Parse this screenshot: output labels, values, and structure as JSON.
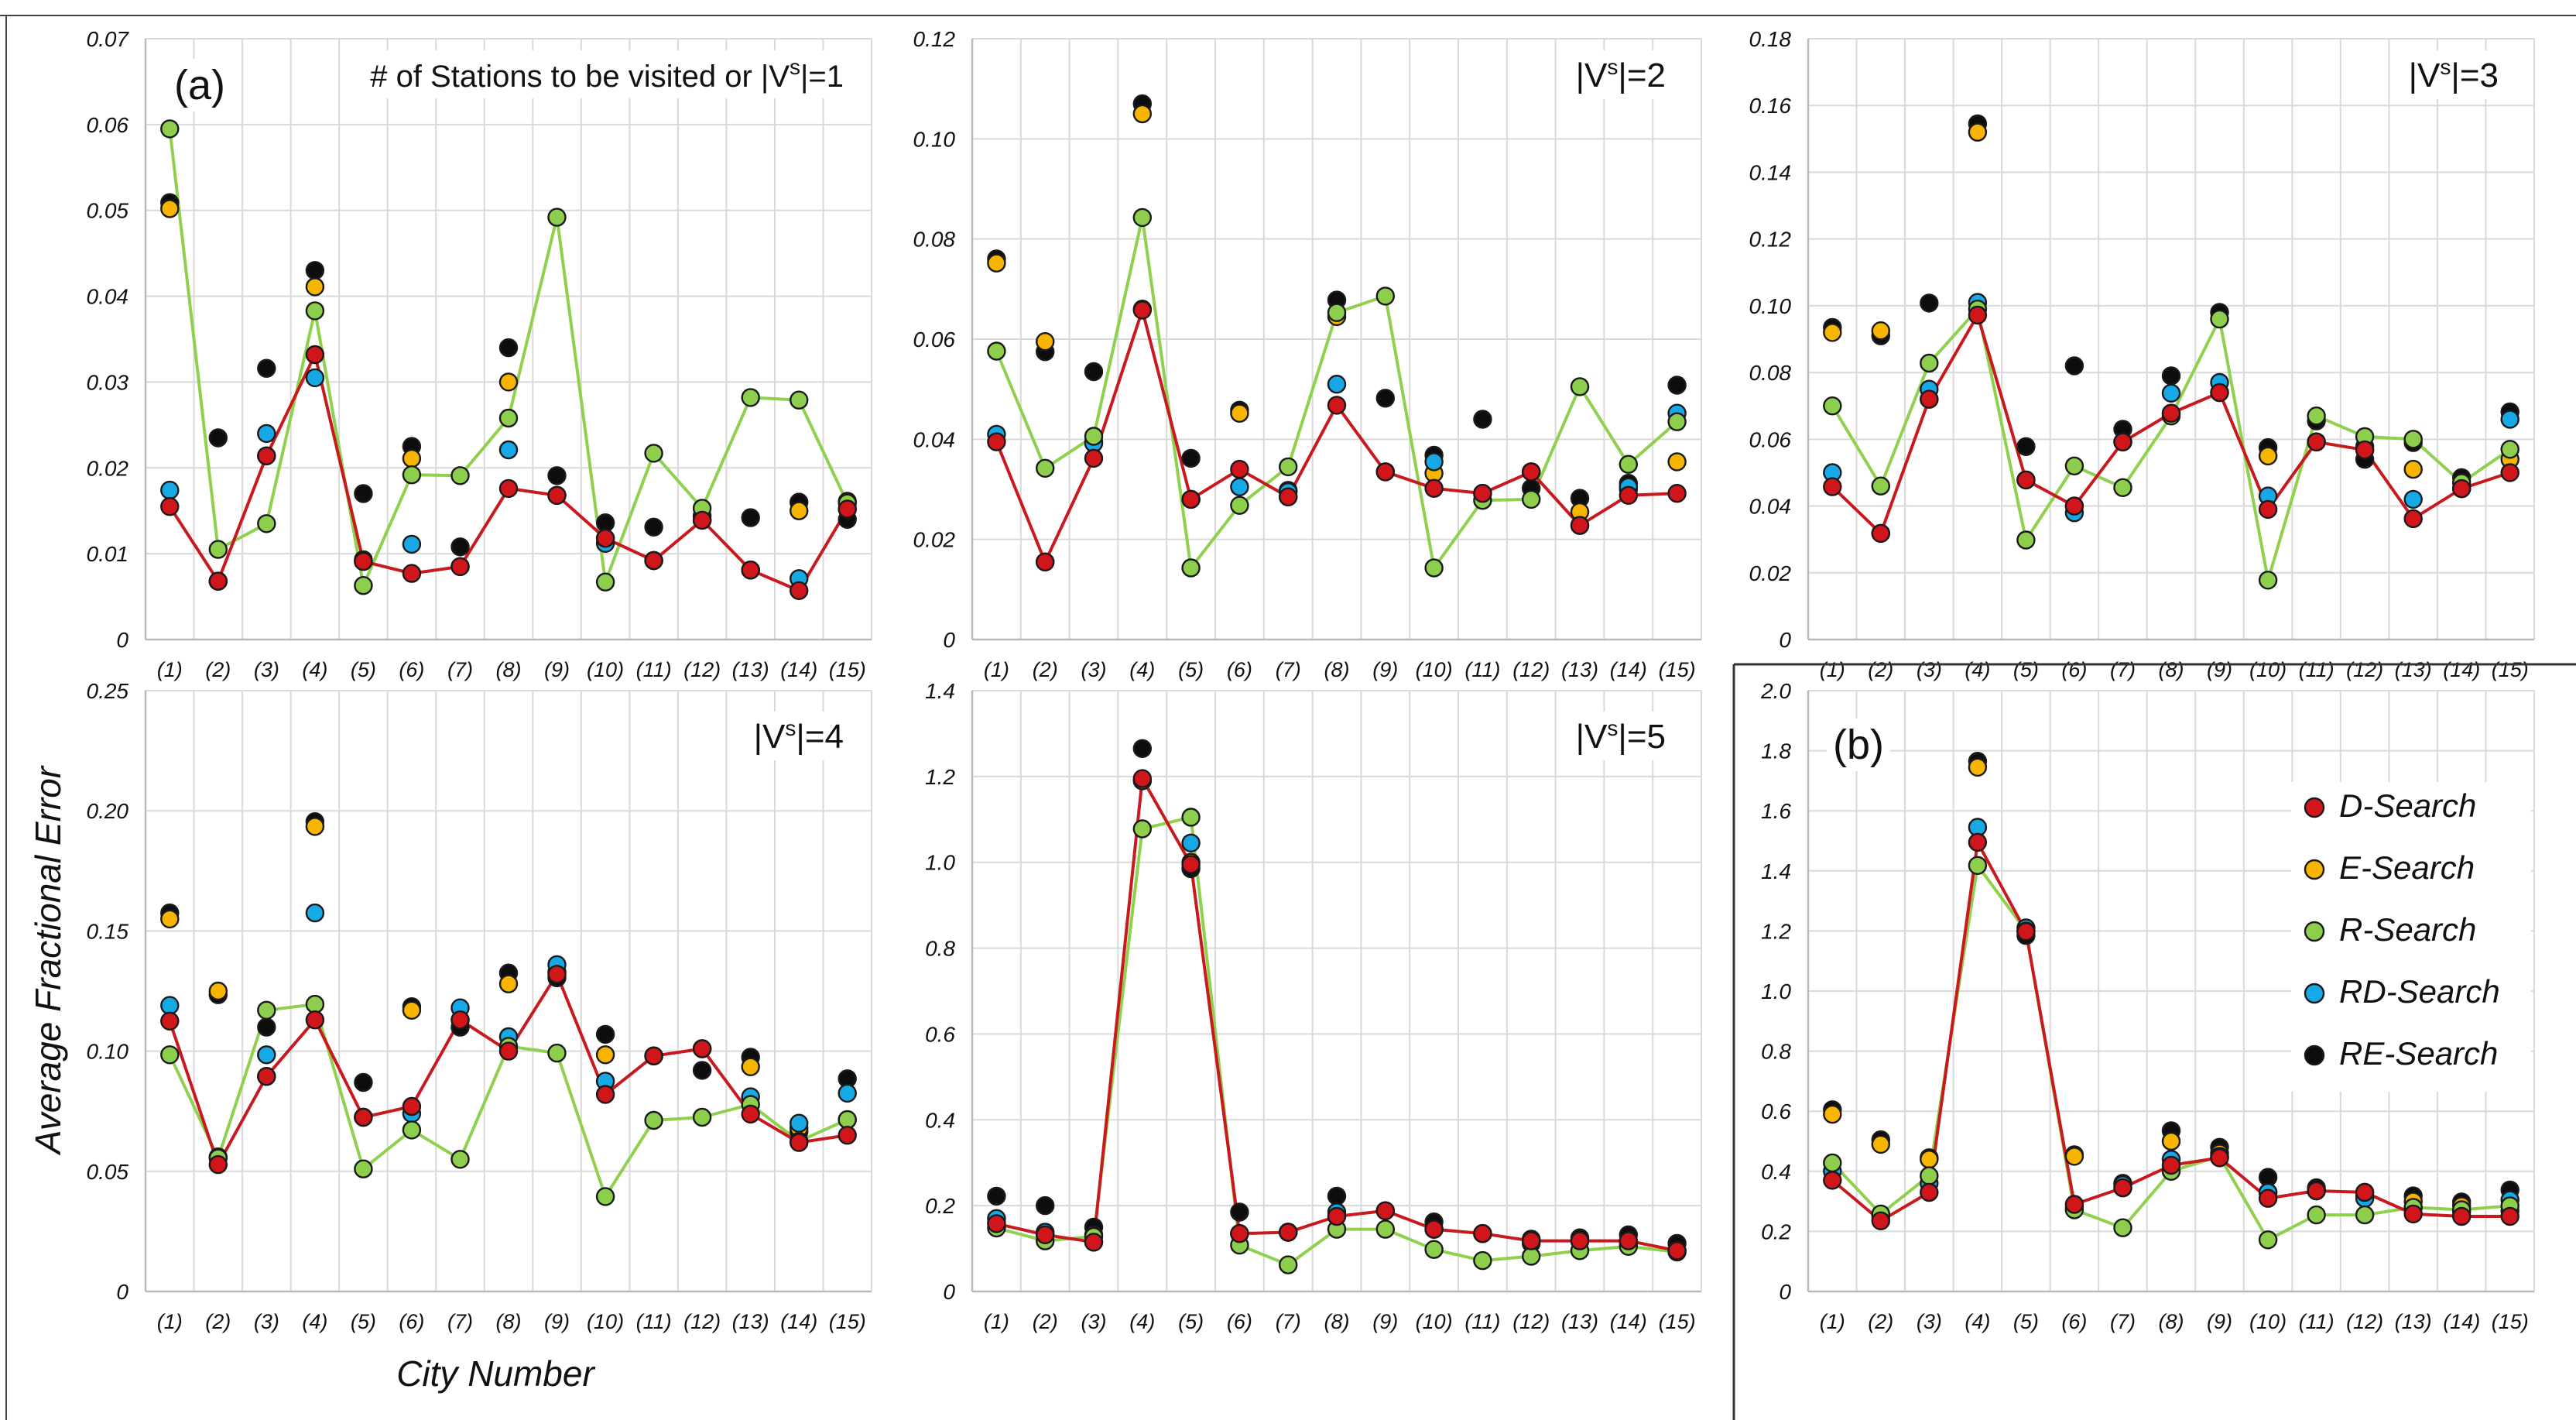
{
  "figure": {
    "ylabel": "Average Fractional Error",
    "xlabel": "City Number",
    "legend": [
      "D-Search",
      "E-Search",
      "R-Search",
      "RD-Search",
      "RE-Search"
    ]
  },
  "colors": {
    "D-Search": "#d0161b",
    "E-Search": "#f7b500",
    "R-Search": "#8dcf4c",
    "RD-Search": "#17a9e5",
    "RE-Search": "#0d0d0d",
    "line_D": "#c8191e",
    "line_R": "#8fd14f"
  },
  "chart_data": [
    {
      "type": "scatter",
      "panel_label": "(a)",
      "title": "# of Stations to be visited or |V",
      "title_sup": "s",
      "title_tail": "|=1",
      "categories": [
        "(1)",
        "(2)",
        "(3)",
        "(4)",
        "(5)",
        "(6)",
        "(7)",
        "(8)",
        "(9)",
        "(10)",
        "(11)",
        "(12)",
        "(13)",
        "(14)",
        "(15)"
      ],
      "ylim": [
        0,
        0.07
      ],
      "yticks": [
        "0",
        "0.01",
        "0.02",
        "0.03",
        "0.04",
        "0.05",
        "0.06",
        "0.07"
      ],
      "series": [
        {
          "name": "R-Search",
          "line": true,
          "values": [
            0.0595,
            0.0105,
            0.0135,
            0.0383,
            0.0063,
            0.0192,
            0.0191,
            0.0258,
            0.0492,
            0.0067,
            0.0217,
            0.0153,
            0.0282,
            0.0279,
            0.0159
          ]
        },
        {
          "name": "D-Search",
          "line": true,
          "values": [
            0.0155,
            0.0068,
            0.0214,
            0.0332,
            0.0091,
            0.0077,
            0.0085,
            0.0176,
            0.0168,
            0.0118,
            0.0092,
            0.0139,
            0.0081,
            0.0057,
            0.0152
          ]
        },
        {
          "name": "E-Search",
          "line": false,
          "values": [
            0.0502,
            0.0068,
            0.0214,
            0.0411,
            0.0091,
            0.0211,
            0.0085,
            0.03,
            0.0168,
            0.0118,
            0.0092,
            0.0139,
            0.0081,
            0.015,
            0.0152
          ]
        },
        {
          "name": "RD-Search",
          "line": false,
          "values": [
            0.0174,
            0.0068,
            0.024,
            0.0305,
            0.0093,
            0.0111,
            0.0085,
            0.0221,
            0.0168,
            0.0112,
            0.0092,
            0.0139,
            0.0081,
            0.0071,
            0.0161
          ]
        },
        {
          "name": "RE-Search",
          "line": false,
          "values": [
            0.0509,
            0.0235,
            0.0316,
            0.043,
            0.017,
            0.0225,
            0.0108,
            0.034,
            0.0191,
            0.0136,
            0.0131,
            0.0144,
            0.0142,
            0.016,
            0.014
          ]
        }
      ]
    },
    {
      "type": "scatter",
      "title": "|V",
      "title_sup": "s",
      "title_tail": "|=2",
      "categories": [
        "(1)",
        "(2)",
        "(3)",
        "(4)",
        "(5)",
        "(6)",
        "(7)",
        "(8)",
        "(9)",
        "(10)",
        "(11)",
        "(12)",
        "(13)",
        "(14)",
        "(15)"
      ],
      "ylim": [
        0,
        0.12
      ],
      "yticks": [
        "0",
        "0.02",
        "0.04",
        "0.06",
        "0.08",
        "0.10",
        "0.12"
      ],
      "series": [
        {
          "name": "R-Search",
          "line": true,
          "values": [
            0.0576,
            0.0342,
            0.0406,
            0.0843,
            0.0143,
            0.0268,
            0.0345,
            0.0653,
            0.0686,
            0.0143,
            0.0278,
            0.028,
            0.0505,
            0.035,
            0.0435
          ]
        },
        {
          "name": "D-Search",
          "line": true,
          "values": [
            0.0395,
            0.0155,
            0.0362,
            0.0658,
            0.028,
            0.034,
            0.0285,
            0.0468,
            0.0335,
            0.0302,
            0.0292,
            0.0335,
            0.0228,
            0.0288,
            0.0292
          ]
        },
        {
          "name": "E-Search",
          "line": false,
          "values": [
            0.0752,
            0.0595,
            0.0395,
            0.105,
            0.028,
            0.0452,
            0.0285,
            0.0645,
            0.0335,
            0.0332,
            0.0292,
            0.0335,
            0.0255,
            0.03,
            0.0355
          ]
        },
        {
          "name": "RD-Search",
          "line": false,
          "values": [
            0.041,
            0.0155,
            0.0392,
            0.066,
            0.028,
            0.0305,
            0.0295,
            0.051,
            0.0335,
            0.0355,
            0.0292,
            0.0335,
            0.0228,
            0.0305,
            0.0452
          ]
        },
        {
          "name": "RE-Search",
          "line": false,
          "values": [
            0.076,
            0.0575,
            0.0535,
            0.107,
            0.0362,
            0.0458,
            0.0298,
            0.0678,
            0.0482,
            0.0368,
            0.044,
            0.0302,
            0.0282,
            0.0312,
            0.0508
          ]
        }
      ]
    },
    {
      "type": "scatter",
      "title": "|V",
      "title_sup": "s",
      "title_tail": "|=3",
      "categories": [
        "(1)",
        "(2)",
        "(3)",
        "(4)",
        "(5)",
        "(6)",
        "(7)",
        "(8)",
        "(9)",
        "(10)",
        "(11)",
        "(12)",
        "(13)",
        "(14)",
        "(15)"
      ],
      "ylim": [
        0,
        0.18
      ],
      "yticks": [
        "0",
        "0.02",
        "0.04",
        "0.06",
        "0.08",
        "0.10",
        "0.12",
        "0.14",
        "0.16",
        "0.18"
      ],
      "series": [
        {
          "name": "R-Search",
          "line": true,
          "values": [
            0.07,
            0.046,
            0.0828,
            0.099,
            0.0298,
            0.052,
            0.0455,
            0.067,
            0.096,
            0.0178,
            0.067,
            0.0608,
            0.06,
            0.047,
            0.057
          ]
        },
        {
          "name": "D-Search",
          "line": true,
          "values": [
            0.0458,
            0.0318,
            0.072,
            0.0972,
            0.0478,
            0.04,
            0.0592,
            0.0678,
            0.074,
            0.039,
            0.0592,
            0.0568,
            0.0362,
            0.0452,
            0.05
          ]
        },
        {
          "name": "E-Search",
          "line": false,
          "values": [
            0.092,
            0.0925,
            0.072,
            0.152,
            0.0478,
            0.04,
            0.0592,
            0.0678,
            0.074,
            0.055,
            0.0592,
            0.0568,
            0.051,
            0.0452,
            0.054
          ]
        },
        {
          "name": "RD-Search",
          "line": false,
          "values": [
            0.05,
            0.0318,
            0.075,
            0.101,
            0.0478,
            0.038,
            0.0592,
            0.0738,
            0.077,
            0.043,
            0.0592,
            0.0578,
            0.042,
            0.0452,
            0.066
          ]
        },
        {
          "name": "RE-Search",
          "line": false,
          "values": [
            0.0935,
            0.091,
            0.1008,
            0.1545,
            0.0578,
            0.082,
            0.063,
            0.079,
            0.098,
            0.0575,
            0.0655,
            0.054,
            0.059,
            0.0485,
            0.0682
          ]
        }
      ]
    },
    {
      "type": "scatter",
      "title": "|V",
      "title_sup": "s",
      "title_tail": "|=4",
      "categories": [
        "(1)",
        "(2)",
        "(3)",
        "(4)",
        "(5)",
        "(6)",
        "(7)",
        "(8)",
        "(9)",
        "(10)",
        "(11)",
        "(12)",
        "(13)",
        "(14)",
        "(15)"
      ],
      "ylim": [
        0,
        0.25
      ],
      "yticks": [
        "0",
        "0.05",
        "0.10",
        "0.15",
        "0.20",
        "0.25"
      ],
      "series": [
        {
          "name": "R-Search",
          "line": true,
          "values": [
            0.0985,
            0.0555,
            0.117,
            0.1195,
            0.051,
            0.0672,
            0.055,
            0.102,
            0.0992,
            0.0395,
            0.0712,
            0.0725,
            0.0778,
            0.0625,
            0.0715
          ]
        },
        {
          "name": "D-Search",
          "line": true,
          "values": [
            0.1125,
            0.0528,
            0.0895,
            0.113,
            0.0725,
            0.077,
            0.113,
            0.1,
            0.132,
            0.082,
            0.098,
            0.101,
            0.0738,
            0.062,
            0.065
          ]
        },
        {
          "name": "E-Search",
          "line": false,
          "values": [
            0.155,
            0.125,
            0.0895,
            0.1935,
            0.0725,
            0.117,
            0.113,
            0.128,
            0.133,
            0.0985,
            0.098,
            0.101,
            0.0935,
            0.068,
            0.0715
          ]
        },
        {
          "name": "RD-Search",
          "line": false,
          "values": [
            0.119,
            0.056,
            0.0985,
            0.1575,
            0.0725,
            0.074,
            0.118,
            0.106,
            0.136,
            0.0875,
            0.098,
            0.101,
            0.081,
            0.07,
            0.0825
          ]
        },
        {
          "name": "RE-Search",
          "line": false,
          "values": [
            0.1575,
            0.1235,
            0.11,
            0.1955,
            0.087,
            0.1185,
            0.11,
            0.1325,
            0.1305,
            0.107,
            0.098,
            0.092,
            0.0975,
            0.0665,
            0.0885
          ]
        }
      ]
    },
    {
      "type": "scatter",
      "title": "|V",
      "title_sup": "s",
      "title_tail": "|=5",
      "categories": [
        "(1)",
        "(2)",
        "(3)",
        "(4)",
        "(5)",
        "(6)",
        "(7)",
        "(8)",
        "(9)",
        "(10)",
        "(11)",
        "(12)",
        "(13)",
        "(14)",
        "(15)"
      ],
      "ylim": [
        0,
        1.4
      ],
      "yticks": [
        "0",
        "0.2",
        "0.4",
        "0.6",
        "0.8",
        "1.0",
        "1.2",
        "1.4"
      ],
      "series": [
        {
          "name": "R-Search",
          "line": true,
          "values": [
            0.148,
            0.118,
            0.128,
            1.078,
            1.105,
            0.108,
            0.062,
            0.145,
            0.145,
            0.098,
            0.072,
            0.082,
            0.095,
            0.105,
            0.092
          ]
        },
        {
          "name": "D-Search",
          "line": true,
          "values": [
            0.158,
            0.132,
            0.115,
            1.195,
            0.995,
            0.135,
            0.138,
            0.175,
            0.188,
            0.145,
            0.135,
            0.118,
            0.118,
            0.118,
            0.095
          ]
        },
        {
          "name": "E-Search",
          "line": false,
          "values": [
            0.16,
            0.132,
            0.115,
            1.19,
            1.0,
            0.135,
            0.138,
            0.175,
            0.188,
            0.145,
            0.135,
            0.118,
            0.118,
            0.118,
            0.095
          ]
        },
        {
          "name": "RD-Search",
          "line": false,
          "values": [
            0.17,
            0.138,
            0.132,
            1.19,
            1.045,
            0.135,
            0.138,
            0.185,
            0.188,
            0.145,
            0.135,
            0.122,
            0.118,
            0.11,
            0.095
          ]
        },
        {
          "name": "RE-Search",
          "line": false,
          "values": [
            0.222,
            0.2,
            0.15,
            1.265,
            0.985,
            0.185,
            0.138,
            0.222,
            0.188,
            0.162,
            0.135,
            0.112,
            0.125,
            0.132,
            0.112
          ]
        }
      ]
    },
    {
      "type": "scatter",
      "panel_label": "(b)",
      "title": "",
      "categories": [
        "(1)",
        "(2)",
        "(3)",
        "(4)",
        "(5)",
        "(6)",
        "(7)",
        "(8)",
        "(9)",
        "(10)",
        "(11)",
        "(12)",
        "(13)",
        "(14)",
        "(15)"
      ],
      "ylim": [
        0,
        2.0
      ],
      "yticks": [
        "0",
        "0.2",
        "0.4",
        "0.6",
        "0.8",
        "1.0",
        "1.2",
        "1.4",
        "1.6",
        "1.8",
        "2.0"
      ],
      "series": [
        {
          "name": "R-Search",
          "line": true,
          "values": [
            0.428,
            0.258,
            0.385,
            1.418,
            1.2,
            0.272,
            0.212,
            0.4,
            0.45,
            0.172,
            0.255,
            0.255,
            0.28,
            0.272,
            0.285
          ]
        },
        {
          "name": "D-Search",
          "line": true,
          "values": [
            0.37,
            0.235,
            0.33,
            1.495,
            1.198,
            0.29,
            0.345,
            0.42,
            0.445,
            0.31,
            0.335,
            0.33,
            0.258,
            0.25,
            0.25
          ]
        },
        {
          "name": "E-Search",
          "line": false,
          "values": [
            0.59,
            0.49,
            0.44,
            1.745,
            1.198,
            0.45,
            0.345,
            0.5,
            0.46,
            0.33,
            0.335,
            0.33,
            0.3,
            0.285,
            0.268
          ]
        },
        {
          "name": "RD-Search",
          "line": false,
          "values": [
            0.4,
            0.25,
            0.36,
            1.545,
            1.21,
            0.28,
            0.355,
            0.44,
            0.445,
            0.33,
            0.335,
            0.31,
            0.28,
            0.265,
            0.305
          ]
        },
        {
          "name": "RE-Search",
          "line": false,
          "values": [
            0.605,
            0.505,
            0.445,
            1.765,
            1.185,
            0.455,
            0.36,
            0.535,
            0.48,
            0.38,
            0.345,
            0.318,
            0.318,
            0.298,
            0.338
          ]
        }
      ]
    }
  ]
}
